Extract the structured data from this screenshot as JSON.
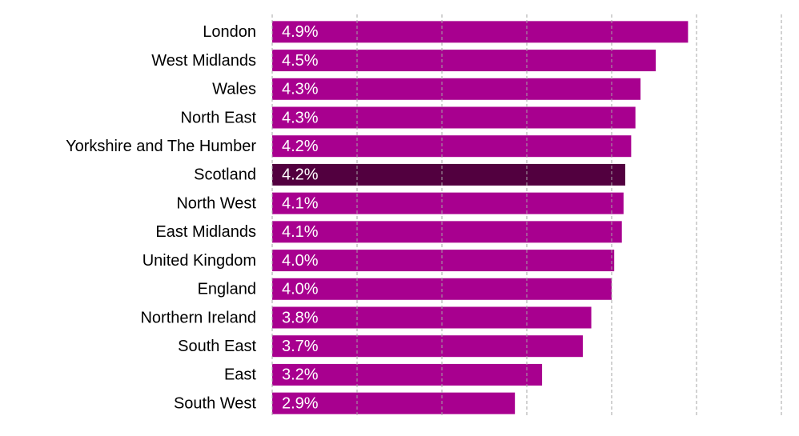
{
  "chart_data": {
    "type": "hbar",
    "categories": [
      "London",
      "West Midlands",
      "Wales",
      "North East",
      "Yorkshire and The Humber",
      "Scotland",
      "North West ",
      "East Midlands",
      "United Kingdom",
      "England",
      "Northern Ireland ",
      "South East",
      "East",
      "South West"
    ],
    "values": [
      4.9,
      4.52,
      4.34,
      4.28,
      4.23,
      4.16,
      4.14,
      4.12,
      4.03,
      4.0,
      3.76,
      3.66,
      3.18,
      2.86
    ],
    "value_labels": [
      "4.9%",
      "4.5%",
      "4.3%",
      "4.3%",
      "4.2%",
      "4.2%",
      "4.1%",
      "4.1%",
      "4.0%",
      "4.0%",
      "3.8%",
      "3.7%",
      "3.2%",
      "2.9%"
    ],
    "colors": [
      "#a8008f",
      "#a8008f",
      "#a8008f",
      "#a8008f",
      "#a8008f",
      "#52003f",
      "#a8008f",
      "#a8008f",
      "#a8008f",
      "#a8008f",
      "#a8008f",
      "#a8008f",
      "#a8008f",
      "#a8008f"
    ],
    "xlim": [
      0,
      6
    ],
    "xticks": [
      0,
      1,
      2,
      3,
      4,
      5,
      6
    ],
    "grid": true
  }
}
